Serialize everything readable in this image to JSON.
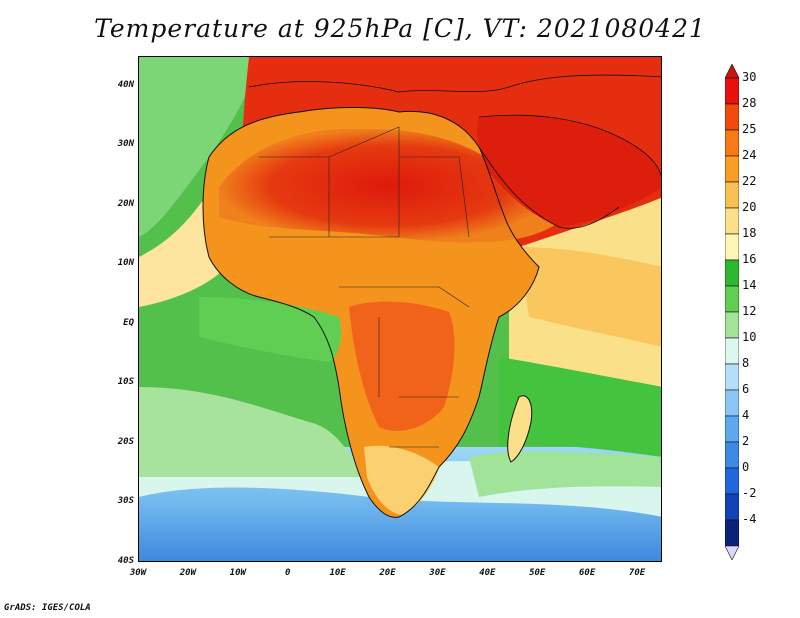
{
  "title": "Temperature at 925hPa [C], VT: 2021080421",
  "credit": "GrADS: IGES/COLA",
  "map": {
    "lon_range": [
      -30,
      75
    ],
    "lat_range": [
      -40,
      45
    ],
    "lat_ticks": [
      {
        "value": 40,
        "label": "40N"
      },
      {
        "value": 30,
        "label": "30N"
      },
      {
        "value": 20,
        "label": "20N"
      },
      {
        "value": 10,
        "label": "10N"
      },
      {
        "value": 0,
        "label": "EQ"
      },
      {
        "value": -10,
        "label": "10S"
      },
      {
        "value": -20,
        "label": "20S"
      },
      {
        "value": -30,
        "label": "30S"
      },
      {
        "value": -40,
        "label": "40S"
      }
    ],
    "lon_ticks": [
      {
        "value": -30,
        "label": "30W"
      },
      {
        "value": -20,
        "label": "20W"
      },
      {
        "value": -10,
        "label": "10W"
      },
      {
        "value": 0,
        "label": "0"
      },
      {
        "value": 10,
        "label": "10E"
      },
      {
        "value": 20,
        "label": "20E"
      },
      {
        "value": 30,
        "label": "30E"
      },
      {
        "value": 40,
        "label": "40E"
      },
      {
        "value": 50,
        "label": "50E"
      },
      {
        "value": 60,
        "label": "60E"
      },
      {
        "value": 70,
        "label": "70E"
      }
    ]
  },
  "colorbar": {
    "labels": [
      "30",
      "28",
      "25",
      "24",
      "22",
      "20",
      "18",
      "16",
      "14",
      "12",
      "10",
      "8",
      "6",
      "4",
      "2",
      "0",
      "-2",
      "-4"
    ],
    "colors": [
      "#e8100c",
      "#f24a0c",
      "#f77a14",
      "#f99e22",
      "#f9c054",
      "#fbe08a",
      "#fdf6b4",
      "#2eb82e",
      "#5fce52",
      "#a2e39a",
      "#dcf7ee",
      "#b6e0fa",
      "#8cc6f6",
      "#5ea8ee",
      "#3d8ae6",
      "#2166da",
      "#1244b8",
      "#0a227a"
    ],
    "top_color": "#d0120c",
    "bottom_color": "#d8d8f8"
  }
}
